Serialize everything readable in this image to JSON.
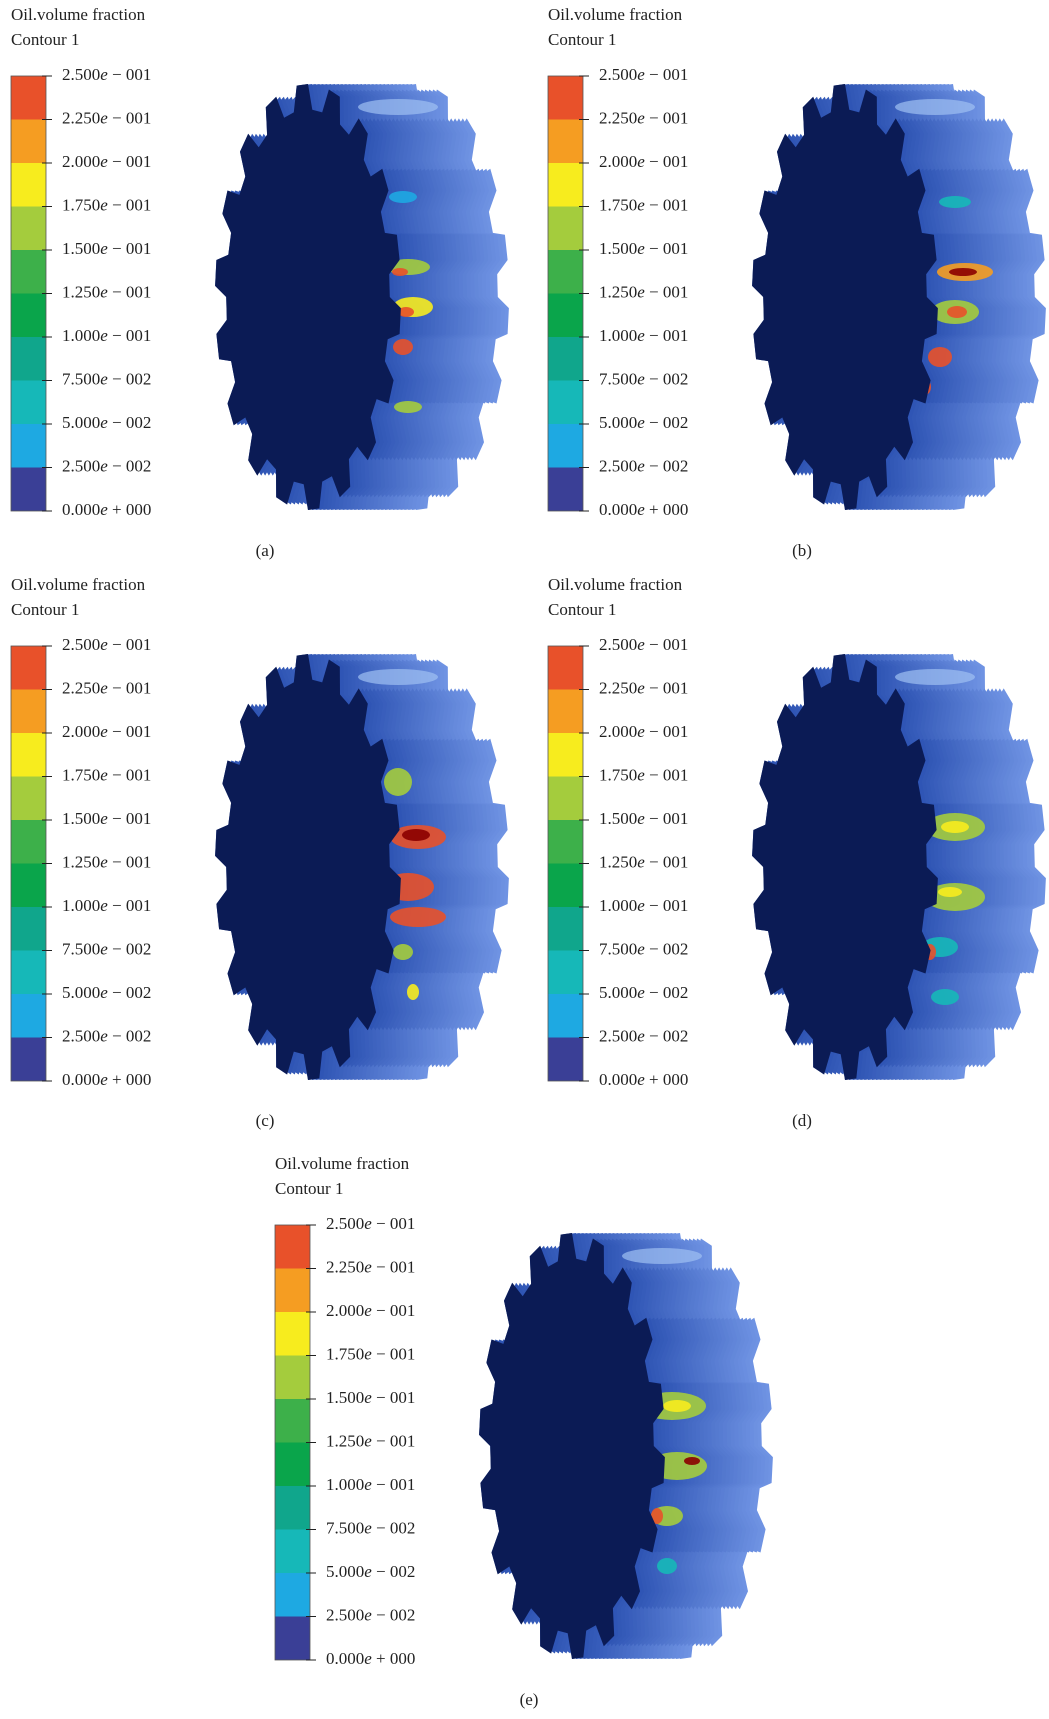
{
  "colorbar_colors": [
    "#e8512a",
    "#f59d22",
    "#f7ec1e",
    "#a4cc3d",
    "#3db04a",
    "#0aa54b",
    "#10a68c",
    "#16b8b8",
    "#1ea9e2",
    "#3a3f96"
  ],
  "panels": [
    {
      "title": [
        "Oil.volume fraction",
        "Contour 1"
      ],
      "legend_labels": [
        "2.500e − 001",
        "2.250e − 001",
        "2.000e − 001",
        "1.750e − 001",
        "1.500e − 001",
        "1.250e − 001",
        "1.000e − 001",
        "7.500e − 002",
        "5.000e − 002",
        "2.500e − 002",
        "0.000e + 000"
      ],
      "caption": "(a)"
    },
    {
      "title": [
        "Oil.volume fraction",
        "Contour 1"
      ],
      "legend_labels": [
        "2.500e − 001",
        "2.250e − 001",
        "2.000e − 001",
        "1.750e − 001",
        "1.500e − 001",
        "1.250e − 001",
        "1.000e − 001",
        "7.500e − 002",
        "5.000e − 002",
        "2.500e − 002",
        "0.000e + 000"
      ],
      "caption": "(b)"
    },
    {
      "title": [
        "Oil.volume fraction",
        "Contour 1"
      ],
      "legend_labels": [
        "2.500e − 001",
        "2.250e − 001",
        "2.000e − 001",
        "1.750e − 001",
        "1.500e − 001",
        "1.250e − 001",
        "1.000e − 001",
        "7.500e − 002",
        "5.000e − 002",
        "2.500e − 002",
        "0.000e + 000"
      ],
      "caption": "(c)"
    },
    {
      "title": [
        "Oil.volume fraction",
        "Contour 1"
      ],
      "legend_labels": [
        "2.500e − 001",
        "2.250e − 001",
        "2.000e − 001",
        "1.750e − 001",
        "1.500e − 001",
        "1.250e − 001",
        "1.000e − 001",
        "7.500e − 002",
        "5.000e − 002",
        "2.500e − 002",
        "0.000e + 000"
      ],
      "caption": "(d)"
    },
    {
      "title": [
        "Oil.volume fraction",
        "Contour 1"
      ],
      "legend_labels": [
        "2.500e − 001",
        "2.250e − 001",
        "2.000e − 001",
        "1.750e − 001",
        "1.500e − 001",
        "1.250e − 001",
        "1.000e − 001",
        "7.500e − 002",
        "5.000e − 002",
        "2.500e − 002",
        "0.000e + 000"
      ],
      "caption": "(e)"
    }
  ]
}
